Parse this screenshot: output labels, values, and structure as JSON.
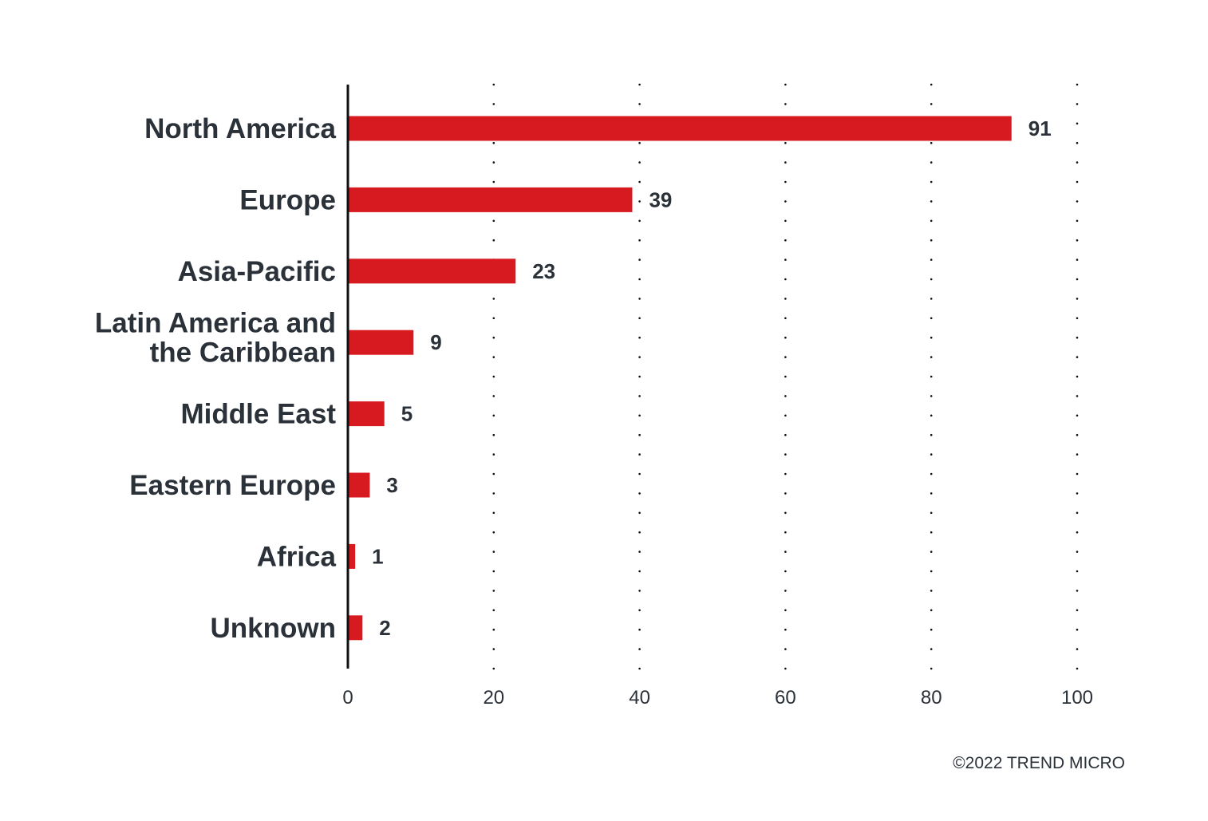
{
  "chart_data": {
    "type": "bar",
    "orientation": "horizontal",
    "categories": [
      [
        "North America"
      ],
      [
        "Europe"
      ],
      [
        "Asia-Pacific"
      ],
      [
        "Latin America and",
        "the Caribbean"
      ],
      [
        "Middle East"
      ],
      [
        "Eastern Europe"
      ],
      [
        "Africa"
      ],
      [
        "Unknown"
      ]
    ],
    "values": [
      91,
      39,
      23,
      9,
      5,
      3,
      1,
      2
    ],
    "value_labels": [
      "91",
      "39",
      "23",
      "9",
      "5",
      "3",
      "1",
      "2"
    ],
    "xlim": [
      0,
      100
    ],
    "xticks": [
      0,
      20,
      40,
      60,
      80,
      100
    ],
    "xtick_labels": [
      "0",
      "20",
      "40",
      "60",
      "80",
      "100"
    ],
    "title": "",
    "xlabel": "",
    "ylabel": "",
    "grid": "vertical dotted",
    "bar_color": "#d71920",
    "axis_color": "#111111",
    "text_color": "#2b3138"
  },
  "credit": "©2022 TREND MICRO"
}
